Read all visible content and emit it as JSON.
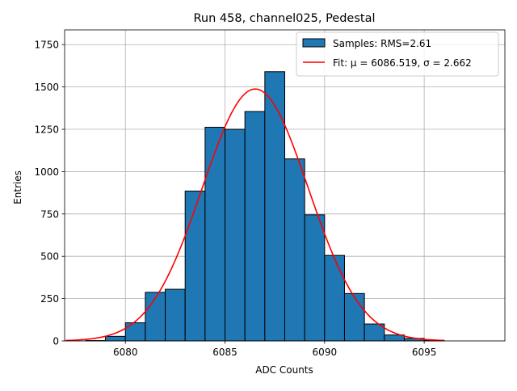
{
  "chart_data": {
    "type": "bar",
    "title": "Run 458, channel025, Pedestal",
    "xlabel": "ADC Counts",
    "ylabel": "Entries",
    "xlim": [
      6076.95,
      6099.05
    ],
    "ylim": [
      0,
      1837
    ],
    "grid": true,
    "legend_position": "top-right",
    "x_ticks": [
      6080,
      6085,
      6090,
      6095
    ],
    "y_ticks": [
      0,
      250,
      500,
      750,
      1000,
      1250,
      1500,
      1750
    ],
    "bin_width": 1,
    "bins": [
      {
        "left": 6078,
        "value": 2
      },
      {
        "left": 6079,
        "value": 27
      },
      {
        "left": 6080,
        "value": 107
      },
      {
        "left": 6081,
        "value": 287
      },
      {
        "left": 6082,
        "value": 305
      },
      {
        "left": 6083,
        "value": 885
      },
      {
        "left": 6084,
        "value": 1262
      },
      {
        "left": 6085,
        "value": 1250
      },
      {
        "left": 6086,
        "value": 1355
      },
      {
        "left": 6087,
        "value": 1590
      },
      {
        "left": 6088,
        "value": 1075
      },
      {
        "left": 6089,
        "value": 745
      },
      {
        "left": 6090,
        "value": 505
      },
      {
        "left": 6091,
        "value": 280
      },
      {
        "left": 6092,
        "value": 100
      },
      {
        "left": 6093,
        "value": 35
      },
      {
        "left": 6094,
        "value": 15
      },
      {
        "left": 6095,
        "value": 3
      }
    ],
    "fit": {
      "type": "gaussian",
      "mu": 6086.519,
      "sigma": 2.662,
      "amplitude": 1488,
      "x_range": [
        6077,
        6096
      ]
    },
    "series": [
      {
        "name": "Samples: RMS=2.61",
        "kind": "histogram",
        "color": "#1f77b4"
      },
      {
        "name": "Fit: μ = 6086.519, σ = 2.662",
        "kind": "line",
        "color": "#ff0000"
      }
    ]
  }
}
